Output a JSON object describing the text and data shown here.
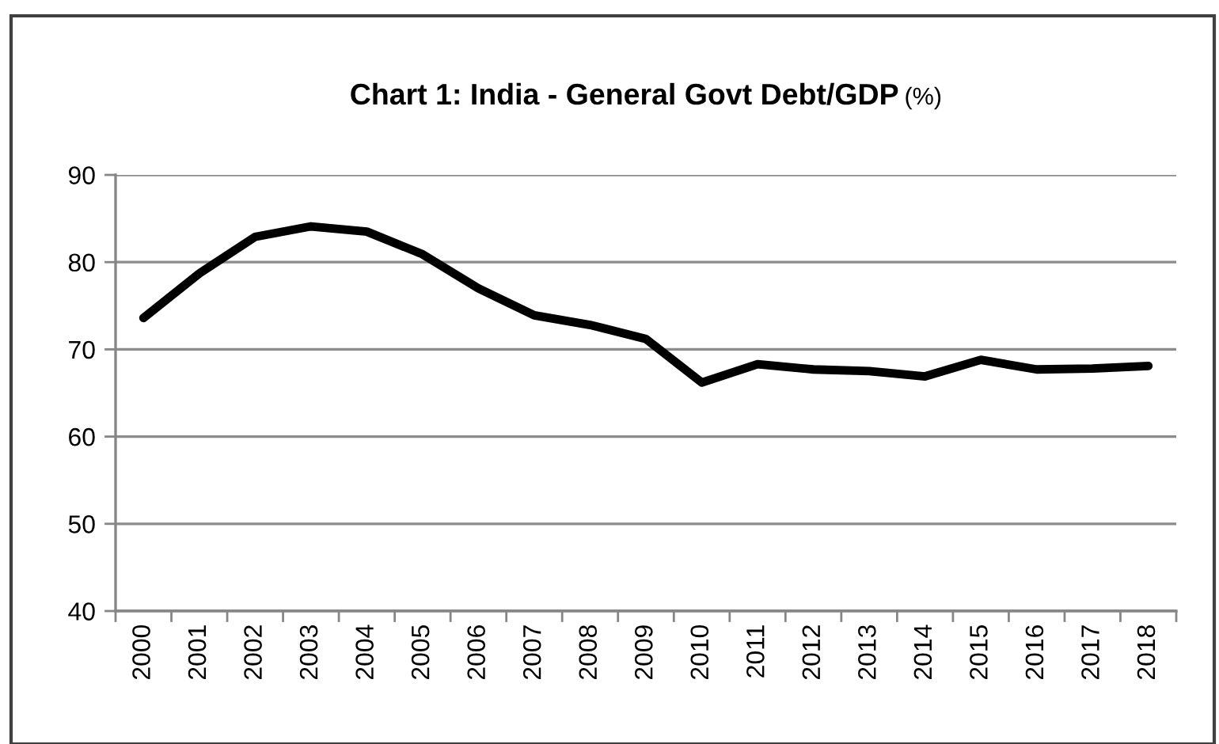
{
  "chart_data": {
    "type": "line",
    "title": "Chart 1: India - General Govt Debt/GDP (%)",
    "categories": [
      "2000",
      "2001",
      "2002",
      "2003",
      "2004",
      "2005",
      "2006",
      "2007",
      "2008",
      "2009",
      "2010",
      "2011",
      "2012",
      "2013",
      "2014",
      "2015",
      "2016",
      "2017",
      "2018"
    ],
    "series": [
      {
        "color": "#000000",
        "values": [
          73.6,
          78.7,
          82.9,
          84.1,
          83.5,
          80.9,
          77.0,
          73.9,
          72.8,
          71.2,
          66.2,
          68.3,
          67.7,
          67.5,
          66.9,
          68.8,
          67.7,
          67.8,
          68.1
        ]
      }
    ],
    "ylim": [
      40,
      90
    ],
    "yticks": [
      40,
      50,
      60,
      70,
      80,
      90
    ],
    "grid": "y",
    "marker": "none",
    "line_style": "solid"
  }
}
